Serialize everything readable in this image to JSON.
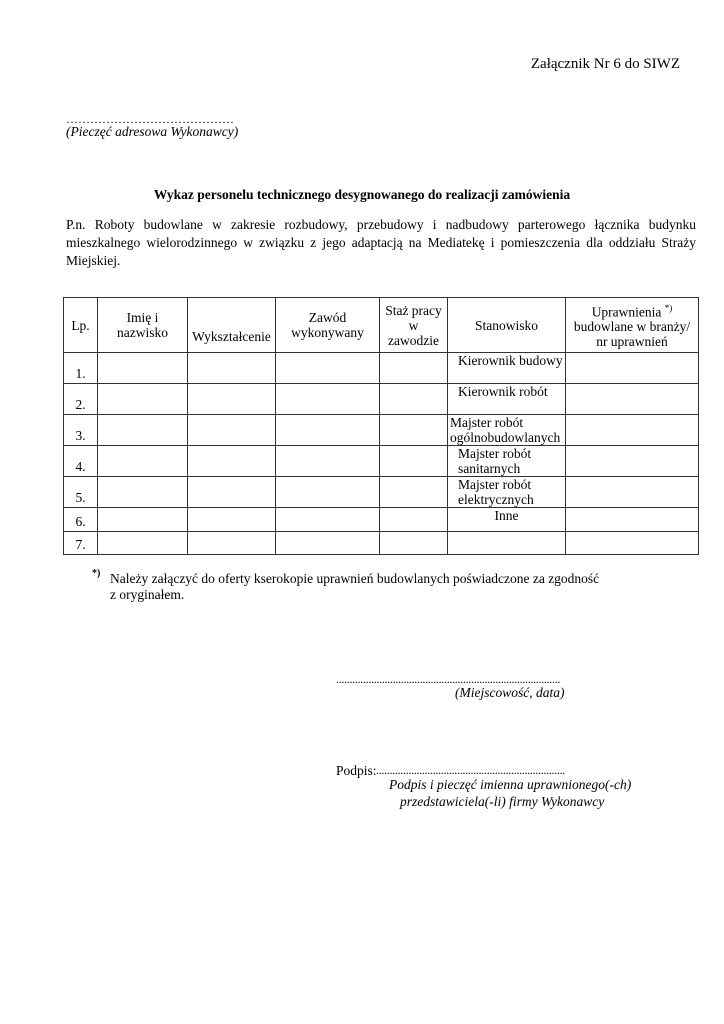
{
  "header": {
    "attachment": "Załącznik Nr 6 do SIWZ",
    "stamp_dots": "……………………………………",
    "stamp_label": "(Pieczęć adresowa Wykonawcy)"
  },
  "title": "Wykaz personelu technicznego desygnowanego do realizacji zamówienia",
  "description": "P.n. Roboty budowlane w zakresie rozbudowy, przebudowy i nadbudowy parterowego łącznika budynku mieszkalnego wielorodzinnego w związku z jego adaptacją na Mediatekę i pomieszczenia dla oddziału Straży Miejskiej.",
  "table": {
    "headers": {
      "lp": "Lp.",
      "name": "Imię i nazwisko",
      "education": "Wykształcenie",
      "profession": "Zawód wykonywany",
      "experience": "Staż pracy w zawodzie",
      "position": "Stanowisko",
      "permissions": "Uprawnienia",
      "permissions_mark": "*)",
      "permissions_rest": "budowlane w branży/ nr uprawnień"
    },
    "rows": [
      {
        "lp": "1.",
        "position": "Kierownik budowy"
      },
      {
        "lp": "2.",
        "position": "Kierownik robót"
      },
      {
        "lp": "3.",
        "position": "Majster robót ogólnobudowlanych"
      },
      {
        "lp": "4.",
        "position": "Majster robót sanitarnych"
      },
      {
        "lp": "5.",
        "position": "Majster robót elektrycznych"
      },
      {
        "lp": "6.",
        "position": "Inne"
      },
      {
        "lp": "7.",
        "position": ""
      }
    ]
  },
  "footnote": {
    "mark": "*)",
    "text": "Należy załączyć do oferty kserokopie uprawnień budowlanych poświadczone za zgodność",
    "text2": "z oryginałem."
  },
  "place_date": {
    "dots": "...................................................................................",
    "label": "(Miejscowość, data)"
  },
  "signature": {
    "prefix": "Podpis:",
    "dots": "......................................................................",
    "label1": "Podpis i pieczęć imienna uprawnionego(-ch)",
    "label2": "przedstawiciela(-li) firmy Wykonawcy"
  }
}
